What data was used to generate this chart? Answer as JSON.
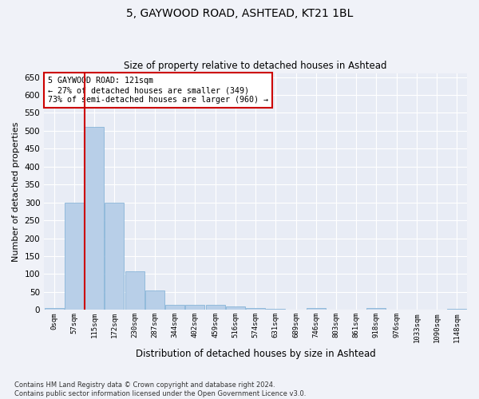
{
  "title1": "5, GAYWOOD ROAD, ASHTEAD, KT21 1BL",
  "title2": "Size of property relative to detached houses in Ashtead",
  "xlabel": "Distribution of detached houses by size in Ashtead",
  "ylabel": "Number of detached properties",
  "bar_labels": [
    "0sqm",
    "57sqm",
    "115sqm",
    "172sqm",
    "230sqm",
    "287sqm",
    "344sqm",
    "402sqm",
    "459sqm",
    "516sqm",
    "574sqm",
    "631sqm",
    "689sqm",
    "746sqm",
    "803sqm",
    "861sqm",
    "918sqm",
    "976sqm",
    "1033sqm",
    "1090sqm",
    "1148sqm"
  ],
  "bar_values": [
    5,
    300,
    510,
    300,
    108,
    55,
    13,
    15,
    13,
    9,
    6,
    2,
    0,
    4,
    0,
    0,
    4,
    0,
    0,
    0,
    3
  ],
  "bar_color": "#b8cfe8",
  "bar_edge_color": "#7aadd4",
  "background_color": "#e8ecf5",
  "fig_background_color": "#f0f2f8",
  "grid_color": "#ffffff",
  "vline_color": "#cc0000",
  "annotation_text": "5 GAYWOOD ROAD: 121sqm\n← 27% of detached houses are smaller (349)\n73% of semi-detached houses are larger (960) →",
  "annotation_box_color": "#ffffff",
  "annotation_box_edge": "#cc0000",
  "ylim": [
    0,
    660
  ],
  "yticks": [
    0,
    50,
    100,
    150,
    200,
    250,
    300,
    350,
    400,
    450,
    500,
    550,
    600,
    650
  ],
  "footnote": "Contains HM Land Registry data © Crown copyright and database right 2024.\nContains public sector information licensed under the Open Government Licence v3.0."
}
